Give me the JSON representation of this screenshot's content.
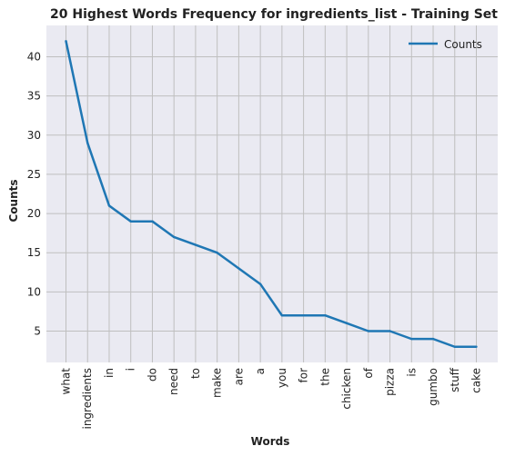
{
  "chart_data": {
    "type": "line",
    "title": "20 Highest Words Frequency for ingredients_list - Training Set",
    "xlabel": "Words",
    "ylabel": "Counts",
    "categories": [
      "what",
      "ingredients",
      "in",
      "i",
      "do",
      "need",
      "to",
      "make",
      "are",
      "a",
      "you",
      "for",
      "the",
      "chicken",
      "of",
      "pizza",
      "is",
      "gumbo",
      "stuff",
      "cake"
    ],
    "series": [
      {
        "name": "Counts",
        "values": [
          42,
          29,
          21,
          19,
          19,
          17,
          16,
          15,
          13,
          11,
          7,
          7,
          7,
          6,
          5,
          5,
          4,
          4,
          3,
          3
        ]
      }
    ],
    "yticks": [
      5,
      10,
      15,
      20,
      25,
      30,
      35,
      40
    ],
    "ylim": [
      1,
      44
    ],
    "grid": true,
    "legend_position": "top-right",
    "colors": {
      "line": "#1f77b4",
      "plot_bg": "#eaeaf2",
      "grid": "#bfbfbf"
    }
  }
}
